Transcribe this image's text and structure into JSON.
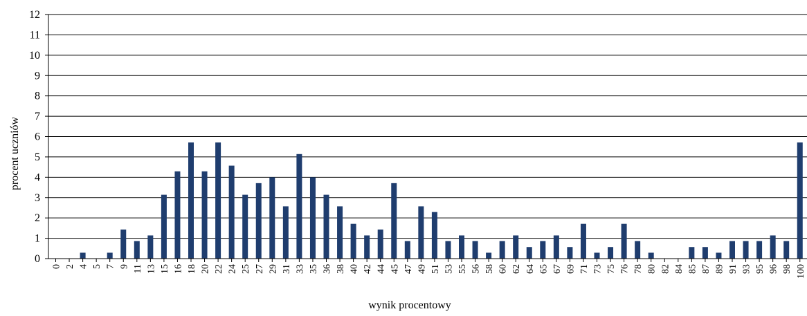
{
  "chart_data": {
    "type": "bar",
    "title": "",
    "xlabel": "wynik procentowy",
    "ylabel": "procent uczniów",
    "ylim": [
      0,
      12
    ],
    "yticks": [
      0,
      1,
      2,
      3,
      4,
      5,
      6,
      7,
      8,
      9,
      10,
      11,
      12
    ],
    "grid": "horizontal",
    "bar_color": "#1f3d6e",
    "categories": [
      "0",
      "2",
      "4",
      "5",
      "7",
      "9",
      "11",
      "13",
      "15",
      "16",
      "18",
      "20",
      "22",
      "24",
      "25",
      "27",
      "29",
      "31",
      "33",
      "35",
      "36",
      "38",
      "40",
      "42",
      "44",
      "45",
      "47",
      "49",
      "51",
      "53",
      "55",
      "56",
      "58",
      "60",
      "62",
      "64",
      "65",
      "67",
      "69",
      "71",
      "73",
      "75",
      "76",
      "78",
      "80",
      "82",
      "84",
      "85",
      "87",
      "89",
      "91",
      "93",
      "95",
      "96",
      "98",
      "100"
    ],
    "values": [
      0,
      0,
      0.29,
      0,
      0.29,
      1.43,
      0.86,
      1.14,
      3.14,
      4.29,
      5.71,
      4.29,
      5.71,
      4.57,
      3.14,
      3.71,
      4.0,
      2.57,
      5.14,
      4.0,
      3.14,
      2.57,
      1.71,
      1.14,
      1.43,
      3.71,
      0.86,
      2.57,
      2.29,
      0.86,
      1.14,
      0.86,
      0.29,
      0.86,
      1.14,
      0.57,
      0.86,
      1.14,
      0.57,
      1.71,
      0.29,
      0.57,
      1.71,
      0.86,
      0.29,
      0,
      0,
      0.57,
      0.57,
      0.29,
      0.86,
      0.86,
      0.86,
      1.14,
      0.86,
      5.71
    ]
  }
}
